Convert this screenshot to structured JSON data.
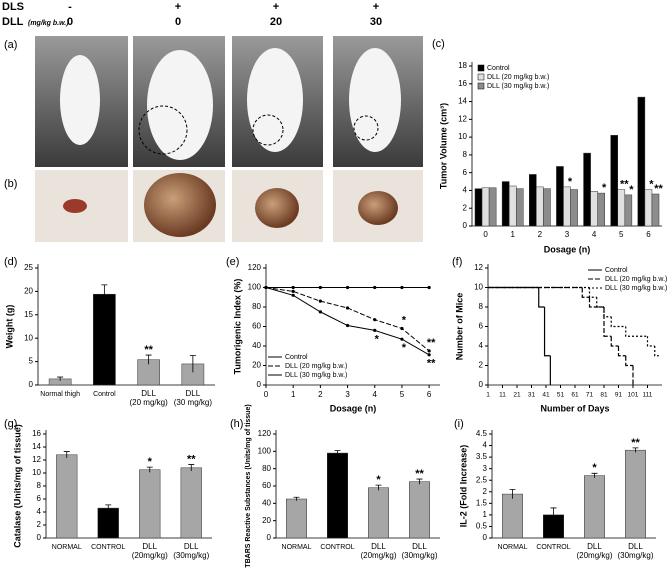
{
  "header": {
    "rows": [
      {
        "label": "DLS",
        "values": [
          "-",
          "+",
          "+",
          "+"
        ]
      },
      {
        "label": "DLL",
        "unit": "(mg/kg b.w.)",
        "values": [
          "0",
          "0",
          "20",
          "30"
        ]
      }
    ]
  },
  "photo_panels": [
    "(a)",
    "(b)"
  ],
  "chart_data": [
    {
      "type": "bar",
      "panel": "(c)",
      "y_label": "Tumor Volume (cm³)",
      "x_label": "Dosage (n)",
      "categories": [
        [
          "0"
        ],
        [
          "1"
        ],
        [
          "2"
        ],
        [
          "3"
        ],
        [
          "4"
        ],
        [
          "5"
        ],
        [
          "6"
        ]
      ],
      "series": [
        {
          "name": "Control",
          "color": "#000000",
          "values": [
            4.2,
            5.0,
            5.8,
            6.7,
            8.2,
            10.2,
            14.5
          ],
          "significance": [
            null,
            null,
            null,
            null,
            null,
            null,
            null
          ]
        },
        {
          "name": "DLL (20 mg/kg b.w.)",
          "color": "#e0e0e0",
          "values": [
            4.3,
            4.5,
            4.4,
            4.4,
            3.9,
            4.1,
            4.1
          ],
          "significance": [
            null,
            null,
            null,
            "*",
            null,
            "**",
            "*"
          ]
        },
        {
          "name": "DLL (30 mg/kg b.w.)",
          "color": "#8c8c8c",
          "values": [
            4.3,
            4.2,
            4.2,
            4.1,
            3.7,
            3.5,
            3.6
          ],
          "significance": [
            null,
            null,
            null,
            null,
            "*",
            "*",
            "**"
          ]
        }
      ],
      "ylim": [
        0,
        18
      ],
      "yticks": [
        0,
        2,
        4,
        6,
        8,
        10,
        12,
        14,
        16,
        18
      ],
      "legend": "upper left"
    },
    {
      "type": "bar",
      "panel": "(d)",
      "y_label": "Weight (g)",
      "categories": [
        [
          "Normal thigh"
        ],
        [
          "Control"
        ],
        [
          "DLL",
          "(20 mg/kg)"
        ],
        [
          "DLL",
          "(30 mg/kg)"
        ]
      ],
      "values": [
        1.3,
        19.4,
        5.4,
        4.5
      ],
      "errors": [
        0.4,
        2.0,
        1.0,
        1.8
      ],
      "colors": [
        "#a6a6a6",
        "#000000",
        "#a6a6a6",
        "#a6a6a6"
      ],
      "significance": [
        null,
        null,
        "**",
        null
      ],
      "ylim": [
        0,
        25
      ],
      "yticks": [
        0,
        5,
        10,
        15,
        20,
        25
      ]
    },
    {
      "type": "line",
      "panel": "(e)",
      "y_label": "Tumorigenic Index (%)",
      "x_label": "Dosage (n)",
      "x": [
        0,
        1,
        2,
        3,
        4,
        5,
        6
      ],
      "series": [
        {
          "name": "Control",
          "color": "#000000",
          "dash": "solid",
          "values": [
            100,
            100,
            100,
            100,
            100,
            100,
            100
          ],
          "significance": [
            null,
            null,
            null,
            null,
            null,
            null,
            null
          ]
        },
        {
          "name": "DLL (20 mg/kg b.w.)",
          "color": "#000000",
          "dash": "dashed",
          "values": [
            100,
            96,
            86,
            79,
            67,
            58,
            35
          ],
          "significance": [
            null,
            null,
            null,
            null,
            null,
            "*",
            "**"
          ]
        },
        {
          "name": "DLL (30 mg/kg b.w.)",
          "color": "#000000",
          "dash": "solid",
          "values": [
            100,
            92,
            75,
            61,
            56,
            47,
            31
          ],
          "significance": [
            null,
            null,
            null,
            null,
            "*",
            "*",
            "**"
          ]
        }
      ],
      "xlim": [
        0,
        6.4
      ],
      "xticks": [
        0,
        1,
        2,
        3,
        4,
        5,
        6
      ],
      "ylim": [
        0,
        120
      ],
      "yticks": [
        0,
        20,
        40,
        60,
        80,
        100,
        120
      ],
      "legend": "lower left"
    },
    {
      "type": "step",
      "panel": "(f)",
      "y_label": "Number of Mice",
      "x_label": "Number of Days",
      "series": [
        {
          "name": "Control",
          "color": "#000000",
          "dash": "solid",
          "x": [
            1,
            36,
            40,
            44
          ],
          "values": [
            10,
            8,
            3,
            0
          ]
        },
        {
          "name": "DLL (20 mg/kg b.w.)",
          "color": "#000000",
          "dash": "dashed",
          "x": [
            1,
            66,
            71,
            81,
            86,
            91,
            96,
            101
          ],
          "values": [
            10,
            9,
            8,
            5,
            4,
            3,
            2,
            0
          ]
        },
        {
          "name": "DLL (30 mg/kg b.w.)",
          "color": "#000000",
          "dash": "dotted",
          "x": [
            1,
            71,
            76,
            81,
            86,
            96,
            106,
            111,
            116
          ],
          "values": [
            10,
            9,
            8,
            7,
            6,
            5,
            5,
            4,
            3
          ]
        }
      ],
      "xlim": [
        1,
        121
      ],
      "xticks": [
        1,
        11,
        21,
        31,
        41,
        51,
        61,
        71,
        81,
        91,
        101,
        111
      ],
      "ylim": [
        0,
        12
      ],
      "yticks": [
        0,
        2,
        4,
        6,
        8,
        10,
        12
      ],
      "legend": "upper right"
    },
    {
      "type": "bar",
      "panel": "(g)",
      "y_label": "Catalase (Units/mg of tissue)",
      "categories": [
        [
          "NORMAL"
        ],
        [
          "CONTROL"
        ],
        [
          "DLL",
          "(20mg/kg)"
        ],
        [
          "DLL",
          "(30mg/kg)"
        ]
      ],
      "values": [
        12.8,
        4.6,
        10.5,
        10.8
      ],
      "errors": [
        0.5,
        0.5,
        0.4,
        0.5
      ],
      "colors": [
        "#a6a6a6",
        "#000000",
        "#a6a6a6",
        "#a6a6a6"
      ],
      "significance": [
        null,
        null,
        "*",
        "**"
      ],
      "ylim": [
        0,
        16
      ],
      "yticks": [
        0,
        2,
        4,
        6,
        8,
        10,
        12,
        14,
        16
      ]
    },
    {
      "type": "bar",
      "panel": "(h)",
      "y_label": "TBARS Reactive Substances (Units/mg of tissue)",
      "categories": [
        [
          "NORMAL"
        ],
        [
          "CONTROL"
        ],
        [
          "DLL",
          "(20mg/kg)"
        ],
        [
          "DLL",
          "(30mg/kg)"
        ]
      ],
      "values": [
        45,
        98,
        58,
        65
      ],
      "errors": [
        2,
        3,
        3,
        3
      ],
      "colors": [
        "#a6a6a6",
        "#000000",
        "#a6a6a6",
        "#a6a6a6"
      ],
      "significance": [
        null,
        null,
        "*",
        "**"
      ],
      "ylim": [
        0,
        120
      ],
      "yticks": [
        0,
        20,
        40,
        60,
        80,
        100,
        120
      ]
    },
    {
      "type": "bar",
      "panel": "(i)",
      "y_label": "IL-2 (Fold Increase)",
      "categories": [
        [
          "NORMAL"
        ],
        [
          "CONTROL"
        ],
        [
          "DLL",
          "(20mg/kg)"
        ],
        [
          "DLL",
          "(30mg/kg)"
        ]
      ],
      "values": [
        1.9,
        1.0,
        2.7,
        3.8
      ],
      "errors": [
        0.2,
        0.3,
        0.1,
        0.1
      ],
      "colors": [
        "#a6a6a6",
        "#000000",
        "#a6a6a6",
        "#a6a6a6"
      ],
      "significance": [
        null,
        null,
        "*",
        "**"
      ],
      "ylim": [
        0,
        4.5
      ],
      "yticks": [
        0,
        0.5,
        1,
        1.5,
        2,
        2.5,
        3,
        3.5,
        4,
        4.5
      ]
    }
  ]
}
